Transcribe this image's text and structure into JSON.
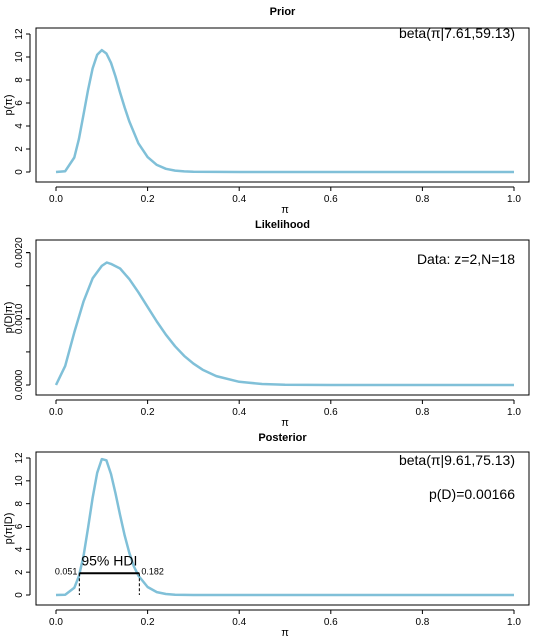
{
  "chart_data": [
    {
      "type": "line",
      "title": "Prior",
      "xlabel": "π",
      "ylabel": "p(π)",
      "xlim": [
        0,
        1
      ],
      "ylim": [
        0,
        12
      ],
      "x_ticks": [
        "0.0",
        "0.2",
        "0.4",
        "0.6",
        "0.8",
        "1.0"
      ],
      "y_ticks": [
        "0",
        "2",
        "4",
        "6",
        "8",
        "10",
        "12"
      ],
      "annotations": [
        "beta(π|7.61,59.13)"
      ],
      "series": [
        {
          "color": "#80c0d8",
          "x": [
            0.0,
            0.02,
            0.04,
            0.05,
            0.06,
            0.07,
            0.08,
            0.09,
            0.1,
            0.11,
            0.12,
            0.13,
            0.14,
            0.15,
            0.16,
            0.18,
            0.2,
            0.22,
            0.24,
            0.26,
            0.28,
            0.3,
            0.4,
            0.6,
            0.8,
            1.0
          ],
          "y": [
            0,
            0.07,
            1.26,
            2.86,
            4.98,
            7.16,
            9.0,
            10.2,
            10.6,
            10.3,
            9.5,
            8.3,
            6.9,
            5.6,
            4.4,
            2.5,
            1.3,
            0.62,
            0.28,
            0.12,
            0.05,
            0.02,
            0,
            0,
            0,
            0
          ]
        }
      ]
    },
    {
      "type": "line",
      "title": "Likelihood",
      "xlabel": "π",
      "ylabel": "p(D|π)",
      "xlim": [
        0,
        1
      ],
      "ylim": [
        0,
        0.0021
      ],
      "x_ticks": [
        "0.0",
        "0.2",
        "0.4",
        "0.6",
        "0.8",
        "1.0"
      ],
      "y_ticks": [
        "0.0000",
        "0.0010",
        "0.0020"
      ],
      "annotations": [
        "Data: z=2,N=18"
      ],
      "series": [
        {
          "color": "#80c0d8",
          "x": [
            0.0,
            0.02,
            0.04,
            0.06,
            0.08,
            0.1,
            0.111,
            0.12,
            0.14,
            0.16,
            0.18,
            0.2,
            0.22,
            0.24,
            0.26,
            0.28,
            0.3,
            0.32,
            0.35,
            0.4,
            0.45,
            0.5,
            0.6,
            0.8,
            1.0
          ],
          "y": [
            0,
            0.000289,
            0.000795,
            0.00126,
            0.00161,
            0.0018,
            0.00185,
            0.00183,
            0.00176,
            0.0016,
            0.0014,
            0.00118,
            0.000959,
            0.00076,
            0.000585,
            0.00044,
            0.000323,
            0.000231,
            0.000135,
            4.9e-05,
            1.55e-05,
            3.8e-06,
            2e-07,
            0,
            0
          ]
        }
      ]
    },
    {
      "type": "line",
      "title": "Posterior",
      "xlabel": "π",
      "ylabel": "p(π|D)",
      "xlim": [
        0,
        1
      ],
      "ylim": [
        0,
        12
      ],
      "x_ticks": [
        "0.0",
        "0.2",
        "0.4",
        "0.6",
        "0.8",
        "1.0"
      ],
      "y_ticks": [
        "0",
        "2",
        "4",
        "6",
        "8",
        "10",
        "12"
      ],
      "annotations": [
        "beta(π|9.61,75.13)",
        "p(D)=0.00166"
      ],
      "hdi": {
        "label": "95% HDI",
        "low": 0.051,
        "high": 0.182,
        "low_label": "0.051",
        "high_label": "0.182",
        "level": 1.9
      },
      "series": [
        {
          "color": "#80c0d8",
          "x": [
            0.0,
            0.02,
            0.04,
            0.05,
            0.06,
            0.07,
            0.08,
            0.09,
            0.1,
            0.11,
            0.12,
            0.13,
            0.14,
            0.15,
            0.16,
            0.17,
            0.18,
            0.2,
            0.22,
            0.24,
            0.26,
            0.28,
            0.3,
            0.4,
            0.6,
            0.8,
            1.0
          ],
          "y": [
            0,
            0.03,
            0.63,
            1.65,
            3.4,
            5.9,
            8.5,
            10.7,
            11.9,
            11.8,
            10.6,
            8.9,
            7.0,
            5.2,
            3.7,
            2.5,
            1.7,
            0.7,
            0.25,
            0.09,
            0.03,
            0.01,
            0,
            0,
            0,
            0,
            0
          ]
        }
      ]
    }
  ]
}
